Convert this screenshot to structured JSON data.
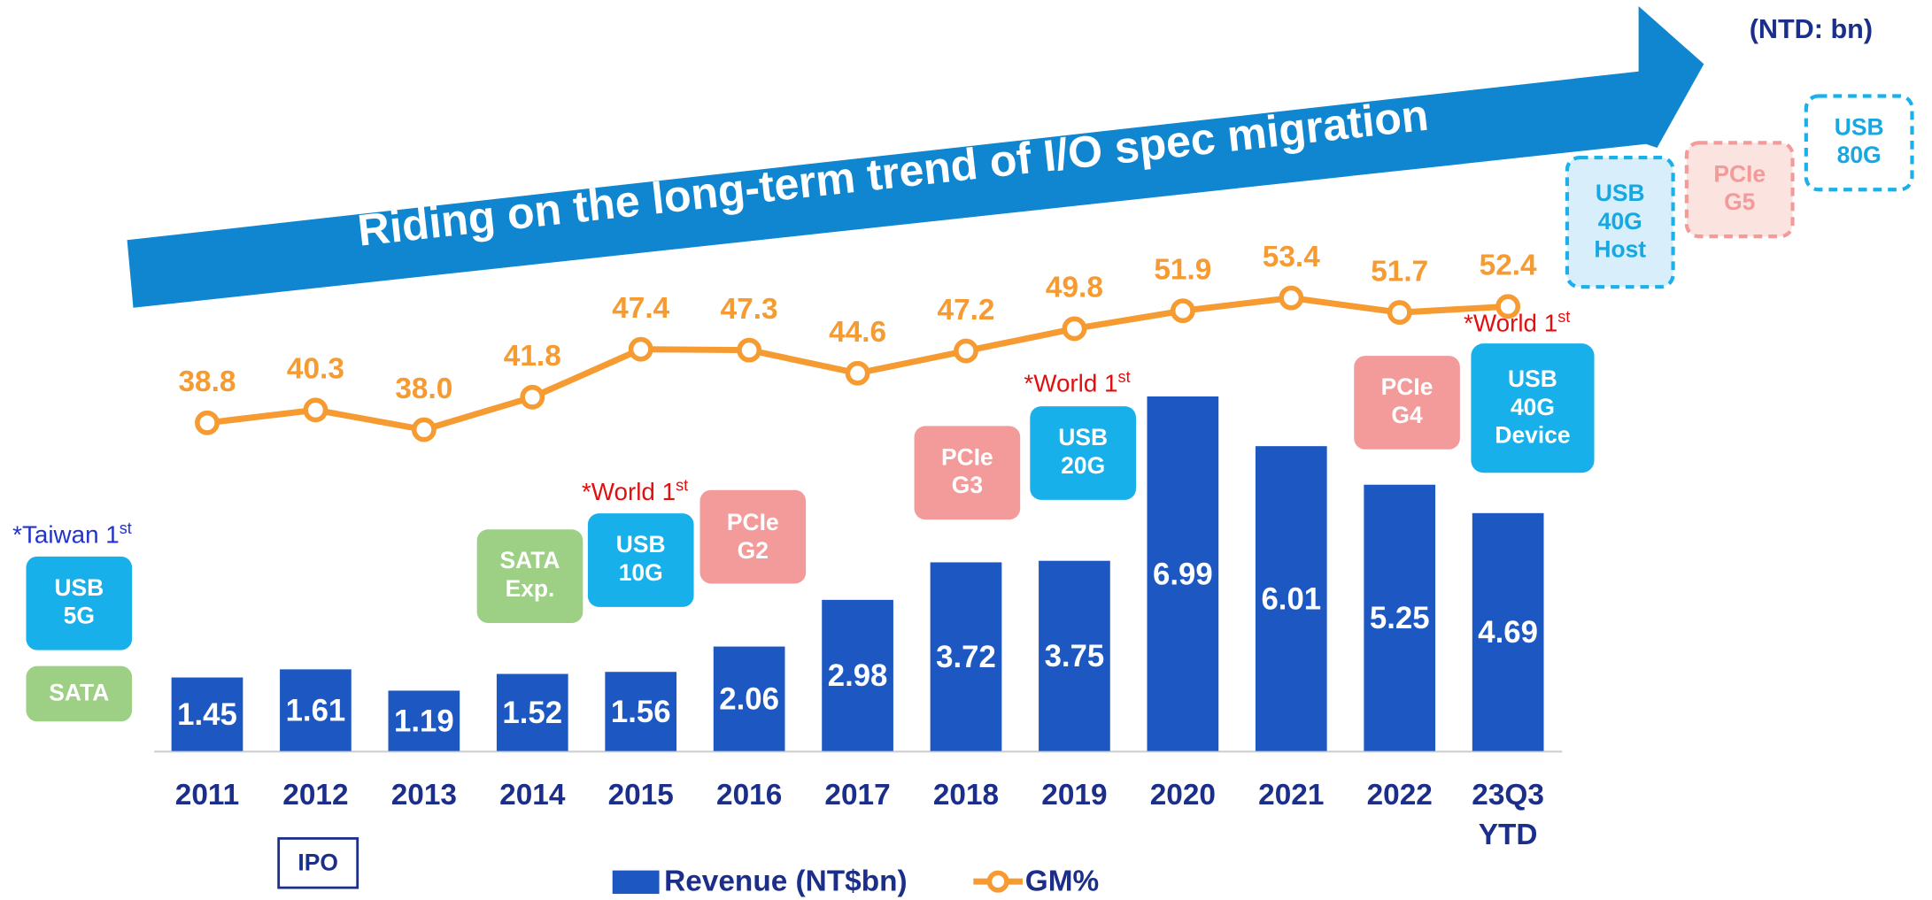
{
  "chart_data": {
    "type": "bar-line",
    "title": "Riding on the long-term trend of I/O spec migration",
    "unit_note": "(NTD: bn)",
    "categories": [
      "2011",
      "2012",
      "2013",
      "2014",
      "2015",
      "2016",
      "2017",
      "2018",
      "2019",
      "2020",
      "2021",
      "2022",
      "23Q3 YTD"
    ],
    "series": [
      {
        "name": "Revenue (NT$bn)",
        "type": "bar",
        "color": "#1c57c2",
        "values": [
          1.45,
          1.61,
          1.19,
          1.52,
          1.56,
          2.06,
          2.98,
          3.72,
          3.75,
          6.99,
          6.01,
          5.25,
          4.69
        ]
      },
      {
        "name": "GM%",
        "type": "line",
        "color": "#f59b31",
        "values": [
          38.8,
          40.3,
          38.0,
          41.8,
          47.4,
          47.3,
          44.6,
          47.2,
          49.8,
          51.9,
          53.4,
          51.7,
          52.4
        ],
        "value_labels": [
          "38.8",
          "40.3",
          "38.0",
          "41.8",
          "47.4",
          "47.3",
          "44.6",
          "47.2",
          "49.8",
          "51.9",
          "53.4",
          "51.7",
          "52.4"
        ]
      }
    ],
    "annotations": [
      {
        "text": "*Taiwan 1",
        "sup": "st"
      },
      {
        "text": "*World 1",
        "sup": "st"
      },
      {
        "text": "*World 1",
        "sup": "st"
      },
      {
        "text": "*World 1",
        "sup": "st"
      }
    ],
    "badges": [
      "USB 5G",
      "SATA",
      "SATA Exp.",
      "USB 10G",
      "PCIe G2",
      "PCIe G3",
      "USB 20G",
      "PCIe G4",
      "USB 40G Device",
      "USB 40G Host",
      "PCIe G5",
      "USB 80G",
      "IPO"
    ]
  }
}
